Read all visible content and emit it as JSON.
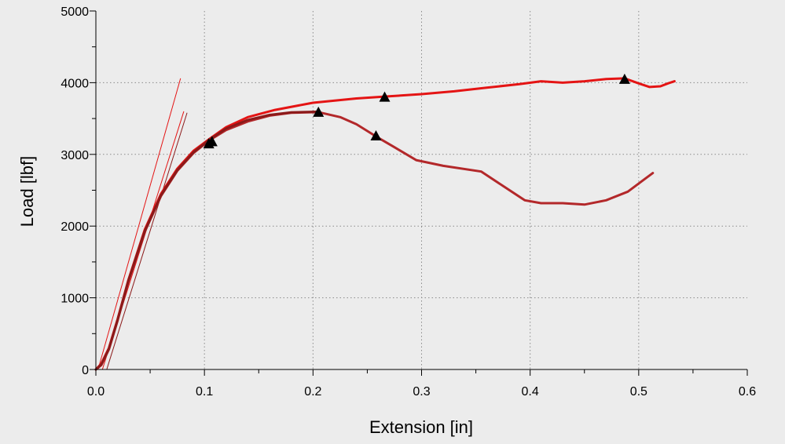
{
  "chart_data": {
    "type": "line",
    "title": "",
    "xlabel": "Extension [in]",
    "ylabel": "Load [lbf]",
    "xlim": [
      0.0,
      0.6
    ],
    "ylim": [
      0,
      5000
    ],
    "x_ticks": [
      "0.0",
      "0.1",
      "0.2",
      "0.3",
      "0.4",
      "0.5",
      "0.6"
    ],
    "y_ticks": [
      "0",
      "1000",
      "2000",
      "3000",
      "4000",
      "5000"
    ],
    "grid": true,
    "legend": "none",
    "colors": {
      "bright": "#e41414",
      "dark": "#b3282a",
      "marker": "#000000",
      "background": "#ececec"
    },
    "series": [
      {
        "color": "#e41414",
        "x": [
          0.0,
          0.005,
          0.012,
          0.02,
          0.03,
          0.045,
          0.06,
          0.075,
          0.09,
          0.105,
          0.12,
          0.14,
          0.165,
          0.2,
          0.24,
          0.27,
          0.3,
          0.33,
          0.36,
          0.39,
          0.41,
          0.43,
          0.45,
          0.47,
          0.487,
          0.5,
          0.51,
          0.52,
          0.527,
          0.533
        ],
        "y": [
          0,
          80,
          300,
          700,
          1250,
          1950,
          2450,
          2800,
          3050,
          3220,
          3380,
          3520,
          3620,
          3720,
          3780,
          3810,
          3840,
          3880,
          3930,
          3980,
          4020,
          4000,
          4020,
          4050,
          4060,
          3990,
          3940,
          3950,
          3990,
          4020
        ]
      },
      {
        "color": "#b3282a",
        "x": [
          0.0,
          0.005,
          0.012,
          0.02,
          0.03,
          0.045,
          0.06,
          0.075,
          0.09,
          0.105,
          0.12,
          0.14,
          0.16,
          0.18,
          0.205,
          0.225,
          0.24,
          0.258,
          0.275,
          0.295,
          0.32,
          0.355,
          0.375,
          0.395,
          0.41,
          0.43,
          0.45,
          0.47,
          0.49,
          0.505,
          0.513
        ],
        "y": [
          0,
          60,
          280,
          680,
          1230,
          1920,
          2420,
          2770,
          3020,
          3200,
          3340,
          3460,
          3540,
          3580,
          3590,
          3520,
          3420,
          3250,
          3100,
          2920,
          2840,
          2760,
          2560,
          2360,
          2320,
          2320,
          2300,
          2360,
          2480,
          2650,
          2740
        ]
      },
      {
        "color": "#8b1a1a",
        "x": [
          0.0,
          0.005,
          0.012,
          0.02,
          0.03,
          0.045,
          0.06,
          0.075,
          0.09,
          0.105,
          0.12,
          0.14,
          0.16,
          0.18,
          0.205
        ],
        "y": [
          0,
          70,
          290,
          690,
          1240,
          1930,
          2430,
          2780,
          3030,
          3210,
          3360,
          3480,
          3550,
          3585,
          3595
        ]
      }
    ],
    "modulus_lines": [
      {
        "color": "#e41414",
        "x": [
          0.002,
          0.078
        ],
        "y": [
          0,
          4060
        ]
      },
      {
        "color": "#e41414",
        "x": [
          0.006,
          0.081
        ],
        "y": [
          0,
          3600
        ]
      },
      {
        "color": "#8b1a1a",
        "x": [
          0.01,
          0.084
        ],
        "y": [
          0,
          3580
        ]
      }
    ],
    "markers": [
      {
        "x": 0.107,
        "y": 3180
      },
      {
        "x": 0.104,
        "y": 3150
      },
      {
        "x": 0.205,
        "y": 3590
      },
      {
        "x": 0.258,
        "y": 3260
      },
      {
        "x": 0.266,
        "y": 3800
      },
      {
        "x": 0.487,
        "y": 4050
      }
    ]
  }
}
